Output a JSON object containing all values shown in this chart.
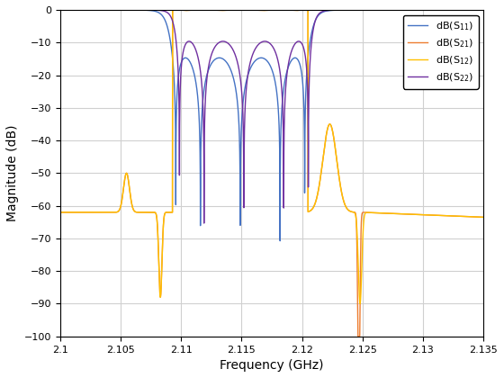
{
  "xlabel": "Frequency (GHz)",
  "ylabel": "Magnitude (dB)",
  "xlim": [
    2.1,
    2.135
  ],
  "ylim": [
    -100,
    0
  ],
  "xticks": [
    2.1,
    2.105,
    2.11,
    2.115,
    2.12,
    2.125,
    2.13,
    2.135
  ],
  "yticks": [
    0,
    -10,
    -20,
    -30,
    -40,
    -50,
    -60,
    -70,
    -80,
    -90,
    -100
  ],
  "legend": [
    "dB(S$_{11}$)",
    "dB(S$_{21}$)",
    "dB(S$_{12}$)",
    "dB(S$_{22}$)"
  ],
  "colors": [
    "#4472c4",
    "#ed7d31",
    "#ffc000",
    "#7030a0"
  ],
  "figsize": [
    5.6,
    4.2
  ],
  "dpi": 100,
  "f_pb_low": 2.1093,
  "f_pb_high": 2.1205,
  "n_poles": 5,
  "ripple_s11_db": 0.15,
  "ripple_s22_db": 0.5
}
